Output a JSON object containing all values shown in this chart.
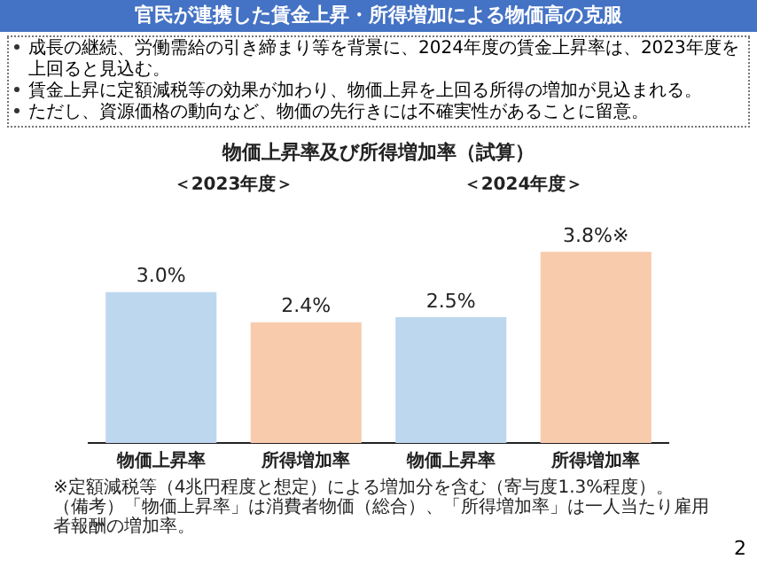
{
  "chart_data": {
    "type": "bar",
    "title": "官民が連携した賃金上昇・所得増加による物価高の克服",
    "subtitle": "物価上昇率及び所得増加率（試算）",
    "categories": [
      "物価上昇率",
      "所得増加率",
      "物価上昇率",
      "所得増加率"
    ],
    "values": [
      3.0,
      2.4,
      2.5,
      3.8
    ],
    "colors": [
      "#bdd7ee",
      "#f8cbad",
      "#bdd7ee",
      "#f8cbad"
    ],
    "value_labels": [
      "3.0%",
      "2.4%",
      "2.5%",
      "3.8%※"
    ],
    "annotations": [
      "成長の継続、労働需給の引き締まり等を背景に、2024年度の賃金上昇率は、2023年度を上回ると見込む。",
      "賃金上昇に定額減税等の効果が加わり、物価上昇を上回る所得の増加が見込まれる。",
      "ただし、資源価格の動向など、物価の先行きには不確実性があることに留意。",
      "＜2023年度＞",
      "＜2024年度＞",
      "※定額減税等（4兆円程度と想定）による増加分を含む（寄与度1.3%程度）。",
      "（備考）「物価上昇率」は消費者物価（総合）、「所得増加率」は一人当たり雇用者報酬の増加率。",
      "2"
    ],
    "grid": false,
    "legend": false
  }
}
